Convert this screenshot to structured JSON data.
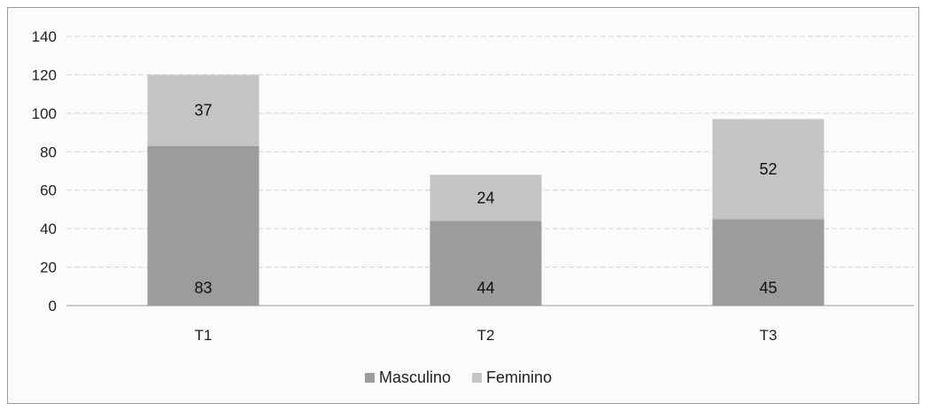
{
  "chart_data": {
    "type": "bar",
    "stacked": true,
    "categories": [
      "T1",
      "T2",
      "T3"
    ],
    "series": [
      {
        "name": "Masculino",
        "values": [
          83,
          44,
          45
        ],
        "color": "#9c9c9c"
      },
      {
        "name": "Feminino",
        "values": [
          37,
          24,
          52
        ],
        "color": "#c4c4c4"
      }
    ],
    "ylim": [
      0,
      140
    ],
    "yticks": [
      0,
      20,
      40,
      60,
      80,
      100,
      120,
      140
    ],
    "grid": true,
    "legend": "bottom",
    "data_labels": true
  }
}
